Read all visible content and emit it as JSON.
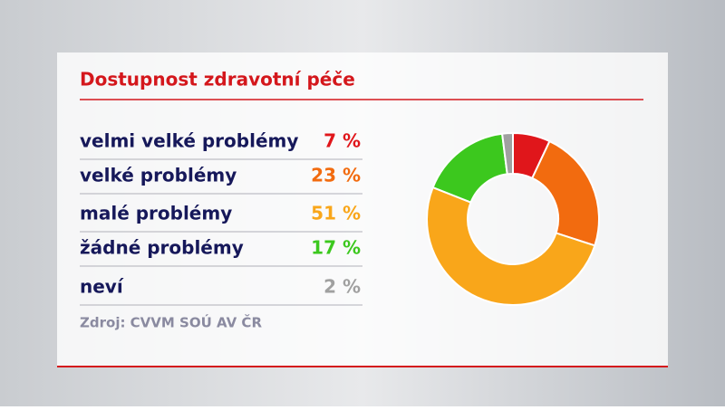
{
  "chart_data": {
    "type": "pie",
    "donut": true,
    "title": "Dostupnost zdravotní péče",
    "categories": [
      "velmi velké problémy",
      "velké problémy",
      "malé problémy",
      "žádné problémy",
      "neví"
    ],
    "values": [
      7,
      23,
      51,
      17,
      2
    ],
    "value_labels": [
      "7 %",
      "23 %",
      "51 %",
      "17 %",
      "2 %"
    ],
    "colors": [
      "#e0161b",
      "#f26b0f",
      "#f9a61a",
      "#3cc81e",
      "#a0a0a0"
    ],
    "source": "Zdroj: CVVM SOÚ AV ČR"
  }
}
